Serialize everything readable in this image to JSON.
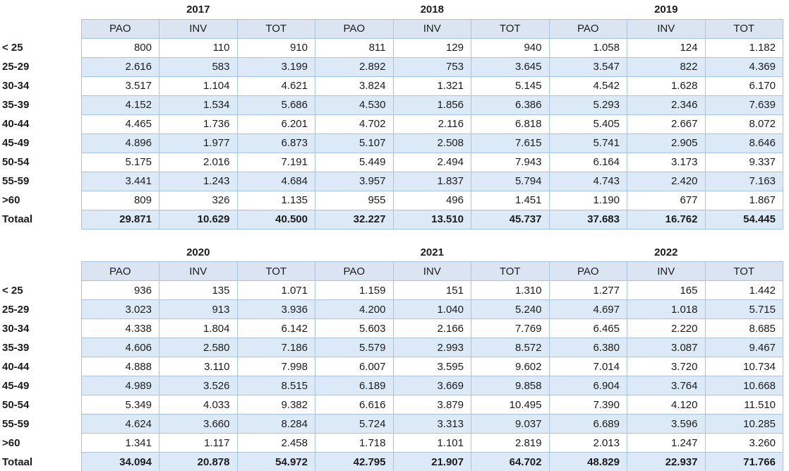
{
  "colors": {
    "header_fill": "#dbe5f1",
    "band_fill": "#dce9f7",
    "grid_border": "#a8c4e0",
    "text": "#1c1c1c",
    "background": "#ffffff"
  },
  "column_headers": [
    "PAO",
    "INV",
    "TOT"
  ],
  "total_label": "Totaal",
  "row_labels": [
    "< 25",
    "25-29",
    "30-34",
    "35-39",
    "40-44",
    "45-49",
    "50-54",
    "55-59",
    ">60",
    "Totaal"
  ],
  "tables": [
    {
      "years": [
        "2017",
        "2018",
        "2019"
      ],
      "rows": [
        {
          "label": "< 25",
          "values": [
            "800",
            "110",
            "910",
            "811",
            "129",
            "940",
            "1.058",
            "124",
            "1.182"
          ]
        },
        {
          "label": "25-29",
          "values": [
            "2.616",
            "583",
            "3.199",
            "2.892",
            "753",
            "3.645",
            "3.547",
            "822",
            "4.369"
          ]
        },
        {
          "label": "30-34",
          "values": [
            "3.517",
            "1.104",
            "4.621",
            "3.824",
            "1.321",
            "5.145",
            "4.542",
            "1.628",
            "6.170"
          ]
        },
        {
          "label": "35-39",
          "values": [
            "4.152",
            "1.534",
            "5.686",
            "4.530",
            "1.856",
            "6.386",
            "5.293",
            "2.346",
            "7.639"
          ]
        },
        {
          "label": "40-44",
          "values": [
            "4.465",
            "1.736",
            "6.201",
            "4.702",
            "2.116",
            "6.818",
            "5.405",
            "2.667",
            "8.072"
          ]
        },
        {
          "label": "45-49",
          "values": [
            "4.896",
            "1.977",
            "6.873",
            "5.107",
            "2.508",
            "7.615",
            "5.741",
            "2.905",
            "8.646"
          ]
        },
        {
          "label": "50-54",
          "values": [
            "5.175",
            "2.016",
            "7.191",
            "5.449",
            "2.494",
            "7.943",
            "6.164",
            "3.173",
            "9.337"
          ]
        },
        {
          "label": "55-59",
          "values": [
            "3.441",
            "1.243",
            "4.684",
            "3.957",
            "1.837",
            "5.794",
            "4.743",
            "2.420",
            "7.163"
          ]
        },
        {
          "label": ">60",
          "values": [
            "809",
            "326",
            "1.135",
            "955",
            "496",
            "1.451",
            "1.190",
            "677",
            "1.867"
          ]
        },
        {
          "label": "Totaal",
          "values": [
            "29.871",
            "10.629",
            "40.500",
            "32.227",
            "13.510",
            "45.737",
            "37.683",
            "16.762",
            "54.445"
          ],
          "is_total": true
        }
      ]
    },
    {
      "years": [
        "2020",
        "2021",
        "2022"
      ],
      "rows": [
        {
          "label": "< 25",
          "values": [
            "936",
            "135",
            "1.071",
            "1.159",
            "151",
            "1.310",
            "1.277",
            "165",
            "1.442"
          ]
        },
        {
          "label": "25-29",
          "values": [
            "3.023",
            "913",
            "3.936",
            "4.200",
            "1.040",
            "5.240",
            "4.697",
            "1.018",
            "5.715"
          ]
        },
        {
          "label": "30-34",
          "values": [
            "4.338",
            "1.804",
            "6.142",
            "5.603",
            "2.166",
            "7.769",
            "6.465",
            "2.220",
            "8.685"
          ]
        },
        {
          "label": "35-39",
          "values": [
            "4.606",
            "2.580",
            "7.186",
            "5.579",
            "2.993",
            "8.572",
            "6.380",
            "3.087",
            "9.467"
          ]
        },
        {
          "label": "40-44",
          "values": [
            "4.888",
            "3.110",
            "7.998",
            "6.007",
            "3.595",
            "9.602",
            "7.014",
            "3.720",
            "10.734"
          ]
        },
        {
          "label": "45-49",
          "values": [
            "4.989",
            "3.526",
            "8.515",
            "6.189",
            "3.669",
            "9.858",
            "6.904",
            "3.764",
            "10.668"
          ]
        },
        {
          "label": "50-54",
          "values": [
            "5.349",
            "4.033",
            "9.382",
            "6.616",
            "3.879",
            "10.495",
            "7.390",
            "4.120",
            "11.510"
          ]
        },
        {
          "label": "55-59",
          "values": [
            "4.624",
            "3.660",
            "8.284",
            "5.724",
            "3.313",
            "9.037",
            "6.689",
            "3.596",
            "10.285"
          ]
        },
        {
          "label": ">60",
          "values": [
            "1.341",
            "1.117",
            "2.458",
            "1.718",
            "1.101",
            "2.819",
            "2.013",
            "1.247",
            "3.260"
          ]
        },
        {
          "label": "Totaal",
          "values": [
            "34.094",
            "20.878",
            "54.972",
            "42.795",
            "21.907",
            "64.702",
            "48.829",
            "22.937",
            "71.766"
          ],
          "is_total": true
        }
      ]
    }
  ]
}
